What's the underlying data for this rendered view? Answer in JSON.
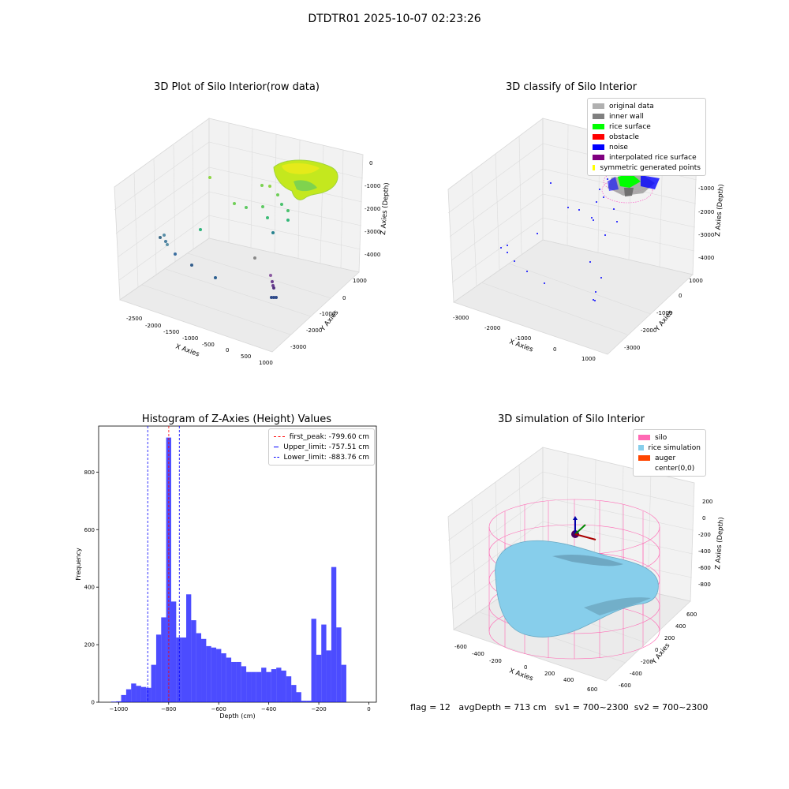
{
  "figure": {
    "suptitle": "DTDTR01 2025-10-07 02:23:26",
    "footer": {
      "flag": "flag = 12",
      "avg_depth": "avgDepth = 713 cm",
      "sv1": "sv1 = 700~2300",
      "sv2": "sv2 = 700~2300"
    }
  },
  "chart_data": [
    {
      "type": "scatter",
      "title": "3D Plot of Silo Interior(row data)",
      "xlabel": "X Axies",
      "ylabel": "Y Axies",
      "zlabel": "Z Axies (Depth)",
      "xticks": [
        "-2500",
        "-2000",
        "-1500",
        "-1000",
        "-500",
        "0",
        "500",
        "1000"
      ],
      "yticks": [
        "1000",
        "0",
        "-1000",
        "-2000",
        "-3000"
      ],
      "zticks": [
        "0",
        "-1000",
        "-2000",
        "-3000",
        "-4000"
      ],
      "colormap": "viridis"
    },
    {
      "type": "scatter",
      "title": "3D classify of Silo Interior",
      "xlabel": "X Axies",
      "ylabel": "Y Axies",
      "zlabel": "Z Axies (Depth)",
      "xticks": [
        "-3000",
        "-2000",
        "-1000",
        "0",
        "1000"
      ],
      "yticks": [
        "1000",
        "0",
        "-1000",
        "-2000",
        "-3000"
      ],
      "zticks": [
        "0",
        "-1000",
        "-2000",
        "-3000",
        "-4000"
      ],
      "legend": [
        {
          "label": "original data",
          "color": "#b0b0b0"
        },
        {
          "label": "inner wall",
          "color": "#808080"
        },
        {
          "label": "rice surface",
          "color": "#00ff00"
        },
        {
          "label": "obstacle",
          "color": "#ff0000"
        },
        {
          "label": "noise",
          "color": "#0000ff"
        },
        {
          "label": "interpolated rice surface",
          "color": "#800080"
        },
        {
          "label": "symmetric generated points",
          "color": "#ffff00"
        }
      ]
    },
    {
      "type": "bar",
      "title": "Histogram of Z-Axies (Height) Values",
      "xlabel": "Depth (cm)",
      "ylabel": "Frequency",
      "xlim": [
        -1080,
        30
      ],
      "ylim": [
        0,
        960
      ],
      "xticks": [
        -1000,
        -800,
        -600,
        -400,
        -200,
        0
      ],
      "yticks": [
        0,
        200,
        400,
        600,
        800
      ],
      "bar_color": "#0000ff",
      "bin_edges_start": -1030,
      "bin_width": 20,
      "values": [
        2,
        3,
        25,
        45,
        65,
        57,
        53,
        50,
        130,
        235,
        295,
        920,
        350,
        225,
        225,
        375,
        285,
        240,
        220,
        195,
        190,
        185,
        170,
        155,
        140,
        140,
        125,
        105,
        105,
        105,
        120,
        105,
        115,
        120,
        110,
        90,
        60,
        35,
        5,
        5,
        290,
        165,
        270,
        180,
        470,
        260,
        130
      ],
      "lines": [
        {
          "label": "first_peak: -799.60 cm",
          "x": -799.6,
          "color": "#ff0000"
        },
        {
          "label": "Upper_limit: -757.51 cm",
          "x": -757.51,
          "color": "#0000ff"
        },
        {
          "label": "Lower_limit: -883.76 cm",
          "x": -883.76,
          "color": "#0000ff"
        }
      ]
    },
    {
      "type": "area",
      "title": "3D simulation of Silo Interior",
      "xlabel": "X Axies",
      "ylabel": "Y Axies",
      "zlabel": "Z Axies (Depth)",
      "xticks": [
        "-600",
        "-400",
        "-200",
        "0",
        "200",
        "400",
        "600"
      ],
      "yticks": [
        "600",
        "400",
        "200",
        "0",
        "-200",
        "-400",
        "-600"
      ],
      "zticks": [
        "200",
        "0",
        "-200",
        "-400",
        "-600",
        "-800"
      ],
      "legend": [
        {
          "label": "silo",
          "color": "#ff69b4"
        },
        {
          "label": "rice simulation",
          "color": "#87ceeb"
        },
        {
          "label": "auger",
          "color": "#ff4500"
        },
        {
          "label": "center(0,0)",
          "color": "#ffffff"
        }
      ]
    }
  ]
}
